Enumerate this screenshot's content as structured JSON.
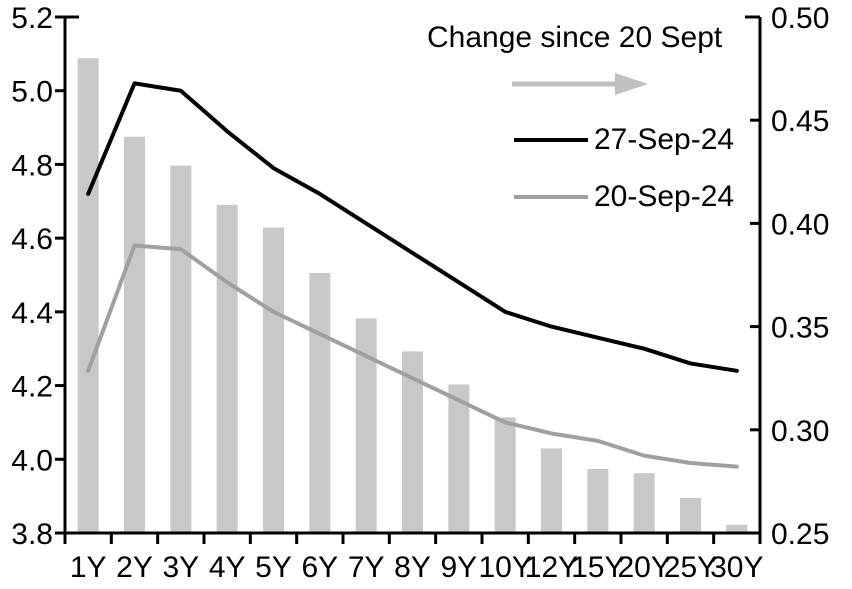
{
  "chart_data": {
    "type": "bar+line",
    "title": "Change since 20 Sept",
    "categories": [
      "1Y",
      "2Y",
      "3Y",
      "4Y",
      "5Y",
      "6Y",
      "7Y",
      "8Y",
      "9Y",
      "10Y",
      "12Y",
      "15Y",
      "20Y",
      "25Y",
      "30Y"
    ],
    "series": [
      {
        "name": "Change since 20 Sept",
        "kind": "bar",
        "axis": "right",
        "color": "#c8c8c8",
        "values": [
          0.48,
          0.442,
          0.428,
          0.409,
          0.398,
          0.376,
          0.354,
          0.338,
          0.322,
          0.306,
          0.291,
          0.281,
          0.279,
          0.267,
          0.254
        ]
      },
      {
        "name": "27-Sep-24",
        "kind": "line",
        "axis": "left",
        "color": "#000000",
        "values": [
          4.72,
          5.02,
          5.0,
          4.89,
          4.79,
          4.72,
          4.64,
          4.56,
          4.48,
          4.4,
          4.36,
          4.33,
          4.3,
          4.26,
          4.24
        ]
      },
      {
        "name": "20-Sep-24",
        "kind": "line",
        "axis": "left",
        "color": "#a0a0a0",
        "values": [
          4.24,
          4.58,
          4.57,
          4.48,
          4.4,
          4.34,
          4.28,
          4.22,
          4.16,
          4.1,
          4.07,
          4.05,
          4.01,
          3.99,
          3.98
        ]
      }
    ],
    "left_axis": {
      "min": 3.8,
      "max": 5.2,
      "tick_values": [
        3.8,
        4.0,
        4.2,
        4.4,
        4.6,
        4.8,
        5.0,
        5.2
      ],
      "tick_labels": [
        "3.8",
        "4.0",
        "4.2",
        "4.4",
        "4.6",
        "4.8",
        "5.0",
        "5.2"
      ]
    },
    "right_axis": {
      "min": 0.25,
      "max": 0.5,
      "tick_values": [
        0.25,
        0.3,
        0.35,
        0.4,
        0.45,
        0.5
      ],
      "tick_labels": [
        "0.25",
        "0.30",
        "0.35",
        "0.40",
        "0.45",
        "0.50"
      ]
    },
    "grid": false,
    "legend_position": "top-right-inside",
    "legend": {
      "change_label": "Change since 20 Sept",
      "arrow_color": "#bfbfbf",
      "items": [
        {
          "label": "27-Sep-24",
          "color": "#000000"
        },
        {
          "label": "20-Sep-24",
          "color": "#a0a0a0"
        }
      ]
    },
    "colors": {
      "background": "#ffffff",
      "axis": "#000000",
      "bar": "#c8c8c8",
      "line_27sep": "#000000",
      "line_20sep": "#a0a0a0"
    }
  }
}
